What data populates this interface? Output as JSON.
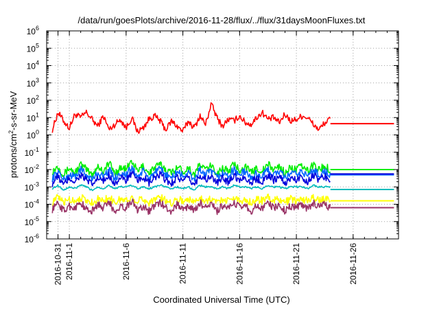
{
  "chart_data": {
    "type": "line",
    "title": "/data/run/goesPlots/archive/2016-11-28/flux/../flux/31daysMoonFluxes.txt",
    "xlabel": "Coordinated Universal Time (UTC)",
    "ylabel_main": "protons/cm",
    "ylabel_sup": "2",
    "ylabel_rest": "-s-sr-MeV",
    "yscale": "log",
    "ylim_exponent": [
      -6,
      6
    ],
    "y_ticks": [
      {
        "base": "10",
        "exp": "-6",
        "value": -6
      },
      {
        "base": "10",
        "exp": "-5",
        "value": -5
      },
      {
        "base": "10",
        "exp": "-4",
        "value": -4
      },
      {
        "base": "10",
        "exp": "-3",
        "value": -3
      },
      {
        "base": "10",
        "exp": "-2",
        "value": -2
      },
      {
        "base": "10",
        "exp": "-1",
        "value": -1
      },
      {
        "base": "10",
        "exp": "0",
        "value": 0
      },
      {
        "base": "10",
        "exp": "1",
        "value": 1
      },
      {
        "base": "10",
        "exp": "2",
        "value": 2
      },
      {
        "base": "10",
        "exp": "3",
        "value": 3
      },
      {
        "base": "10",
        "exp": "4",
        "value": 4
      },
      {
        "base": "10",
        "exp": "5",
        "value": 5
      },
      {
        "base": "10",
        "exp": "6",
        "value": 6
      }
    ],
    "xlim_days": [
      -1,
      30
    ],
    "x_ticks": [
      {
        "label": "2016-10-31",
        "day": 0
      },
      {
        "label": "2016-11-1",
        "day": 1
      },
      {
        "label": "2016-11-6",
        "day": 6
      },
      {
        "label": "2016-11-11",
        "day": 11
      },
      {
        "label": "2016-11-16",
        "day": 16
      },
      {
        "label": "2016-11-21",
        "day": 21
      },
      {
        "label": "2016-11-26",
        "day": 26
      }
    ],
    "grid": true,
    "series": [
      {
        "color": "#ff0000",
        "x": [
          -0.5,
          0.0,
          0.5,
          1.0,
          1.5,
          2.0,
          2.5,
          3.0,
          3.5,
          4.0,
          4.5,
          5.0,
          5.5,
          6.0,
          6.5,
          7.0,
          7.5,
          8.0,
          8.5,
          9.0,
          9.5,
          10.0,
          10.5,
          11.0,
          11.5,
          12.0,
          12.5,
          13.0,
          13.5,
          14.0,
          14.5,
          15.0,
          15.5,
          16.0,
          16.5,
          17.0,
          17.5,
          18.0,
          18.5,
          19.0,
          19.5,
          20.0,
          20.5,
          21.0,
          21.5,
          22.0,
          22.5,
          23.0,
          23.5,
          24.0,
          29.6
        ],
        "values_log10": [
          0.3,
          1.3,
          0.8,
          0.4,
          1.2,
          1.0,
          1.3,
          0.9,
          0.5,
          1.1,
          0.3,
          0.6,
          0.9,
          0.4,
          1.0,
          0.2,
          0.4,
          0.9,
          1.1,
          0.8,
          0.3,
          0.8,
          0.5,
          0.2,
          0.8,
          0.4,
          1.1,
          0.6,
          1.8,
          1.0,
          0.5,
          0.9,
          0.8,
          1.1,
          0.7,
          0.6,
          1.0,
          1.3,
          0.9,
          1.0,
          0.7,
          1.2,
          0.8,
          0.9,
          1.1,
          1.0,
          0.6,
          0.3,
          0.7,
          0.9,
          0.65
        ]
      },
      {
        "color": "#00ee00",
        "x": [
          -0.5,
          0.0,
          0.5,
          1.0,
          1.5,
          2.0,
          2.5,
          3.0,
          3.5,
          4.0,
          4.5,
          5.0,
          5.5,
          6.0,
          6.5,
          7.0,
          7.5,
          8.0,
          8.5,
          9.0,
          9.5,
          10.0,
          10.5,
          11.0,
          11.5,
          12.0,
          12.5,
          13.0,
          13.5,
          14.0,
          14.5,
          15.0,
          15.5,
          16.0,
          16.5,
          17.0,
          17.5,
          18.0,
          18.5,
          19.0,
          19.5,
          20.0,
          20.5,
          21.0,
          21.5,
          22.0,
          22.5,
          23.0,
          23.5,
          24.0,
          29.6
        ],
        "values_log10": [
          -2.1,
          -1.8,
          -2.3,
          -1.9,
          -2.2,
          -1.7,
          -2.0,
          -2.3,
          -1.8,
          -2.1,
          -1.6,
          -2.2,
          -1.9,
          -2.0,
          -1.5,
          -2.1,
          -1.8,
          -2.2,
          -1.9,
          -1.7,
          -2.0,
          -2.2,
          -1.8,
          -2.1,
          -1.9,
          -2.3,
          -1.7,
          -2.0,
          -1.8,
          -2.2,
          -1.9,
          -2.1,
          -1.7,
          -2.0,
          -1.8,
          -2.2,
          -1.9,
          -2.1,
          -1.7,
          -2.0,
          -1.8,
          -2.2,
          -1.9,
          -2.0,
          -1.8,
          -2.1,
          -1.7,
          -2.0,
          -1.8,
          -2.0,
          -2.0
        ]
      },
      {
        "color": "#0066ff",
        "x": [
          -0.5,
          0.0,
          0.5,
          1.0,
          1.5,
          2.0,
          2.5,
          3.0,
          3.5,
          4.0,
          4.5,
          5.0,
          5.5,
          6.0,
          6.5,
          7.0,
          7.5,
          8.0,
          8.5,
          9.0,
          9.5,
          10.0,
          10.5,
          11.0,
          11.5,
          12.0,
          12.5,
          13.0,
          13.5,
          14.0,
          14.5,
          15.0,
          15.5,
          16.0,
          16.5,
          17.0,
          17.5,
          18.0,
          18.5,
          19.0,
          19.5,
          20.0,
          20.5,
          21.0,
          21.5,
          22.0,
          22.5,
          23.0,
          23.5,
          24.0,
          29.6
        ],
        "values_log10": [
          -2.5,
          -2.1,
          -2.6,
          -2.3,
          -2.4,
          -2.0,
          -2.3,
          -2.6,
          -2.2,
          -2.4,
          -2.0,
          -2.5,
          -2.2,
          -2.3,
          -1.9,
          -2.4,
          -2.1,
          -2.5,
          -2.2,
          -2.0,
          -2.3,
          -2.5,
          -2.1,
          -2.4,
          -2.2,
          -2.6,
          -2.0,
          -2.3,
          -2.1,
          -2.5,
          -2.2,
          -2.4,
          -2.0,
          -2.3,
          -2.1,
          -2.5,
          -2.2,
          -2.4,
          -2.0,
          -2.3,
          -2.1,
          -2.5,
          -2.2,
          -2.3,
          -2.1,
          -2.4,
          -2.0,
          -2.3,
          -2.1,
          -2.3,
          -2.3
        ]
      },
      {
        "color": "#0000dd",
        "x": [
          -0.5,
          0.0,
          0.5,
          1.0,
          1.5,
          2.0,
          2.5,
          3.0,
          3.5,
          4.0,
          4.5,
          5.0,
          5.5,
          6.0,
          6.5,
          7.0,
          7.5,
          8.0,
          8.5,
          9.0,
          9.5,
          10.0,
          10.5,
          11.0,
          11.5,
          12.0,
          12.5,
          13.0,
          13.5,
          14.0,
          14.5,
          15.0,
          15.5,
          16.0,
          16.5,
          17.0,
          17.5,
          18.0,
          18.5,
          19.0,
          19.5,
          20.0,
          20.5,
          21.0,
          21.5,
          22.0,
          22.5,
          23.0,
          23.5,
          24.0,
          29.6
        ],
        "values_log10": [
          -2.8,
          -2.4,
          -2.9,
          -2.5,
          -2.7,
          -2.3,
          -2.6,
          -2.9,
          -2.5,
          -2.7,
          -2.3,
          -2.8,
          -2.5,
          -2.6,
          -2.2,
          -2.7,
          -2.4,
          -2.8,
          -2.5,
          -2.3,
          -2.6,
          -2.8,
          -2.4,
          -2.7,
          -2.5,
          -2.9,
          -2.3,
          -2.6,
          -2.4,
          -2.8,
          -2.5,
          -2.7,
          -2.3,
          -2.6,
          -2.4,
          -2.8,
          -2.5,
          -2.7,
          -2.3,
          -2.6,
          -2.4,
          -2.8,
          -2.5,
          -2.6,
          -2.4,
          -2.7,
          -2.3,
          -2.6,
          -2.4,
          -2.6,
          -2.25
        ]
      },
      {
        "color": "#00bbbb",
        "x": [
          -0.5,
          0.0,
          0.5,
          1.0,
          1.5,
          2.0,
          2.5,
          3.0,
          3.5,
          4.0,
          4.5,
          5.0,
          5.5,
          6.0,
          6.5,
          7.0,
          7.5,
          8.0,
          8.5,
          9.0,
          9.5,
          10.0,
          10.5,
          11.0,
          11.5,
          12.0,
          12.5,
          13.0,
          13.5,
          14.0,
          14.5,
          15.0,
          15.5,
          16.0,
          16.5,
          17.0,
          17.5,
          18.0,
          18.5,
          19.0,
          19.5,
          20.0,
          20.5,
          21.0,
          21.5,
          22.0,
          22.5,
          23.0,
          23.5,
          24.0,
          29.6
        ],
        "values_log10": [
          -3.1,
          -2.9,
          -3.2,
          -3.0,
          -3.1,
          -2.9,
          -3.0,
          -3.2,
          -3.0,
          -3.1,
          -2.9,
          -3.1,
          -3.0,
          -3.0,
          -2.9,
          -3.1,
          -3.0,
          -3.1,
          -3.0,
          -2.9,
          -3.0,
          -3.1,
          -3.0,
          -3.1,
          -3.0,
          -3.2,
          -2.9,
          -3.0,
          -3.0,
          -3.1,
          -3.0,
          -3.1,
          -2.9,
          -3.0,
          -3.0,
          -3.1,
          -3.0,
          -3.1,
          -2.9,
          -3.0,
          -3.0,
          -3.1,
          -3.0,
          -3.0,
          -3.0,
          -3.1,
          -2.9,
          -3.0,
          -3.0,
          -3.0,
          -3.15
        ]
      },
      {
        "color": "#ffff00",
        "x": [
          -0.5,
          0.0,
          0.5,
          1.0,
          1.5,
          2.0,
          2.5,
          3.0,
          3.5,
          4.0,
          4.5,
          5.0,
          5.5,
          6.0,
          6.5,
          7.0,
          7.5,
          8.0,
          8.5,
          9.0,
          9.5,
          10.0,
          10.5,
          11.0,
          11.5,
          12.0,
          12.5,
          13.0,
          13.5,
          14.0,
          14.5,
          15.0,
          15.5,
          16.0,
          16.5,
          17.0,
          17.5,
          18.0,
          18.5,
          19.0,
          19.5,
          20.0,
          20.5,
          21.0,
          21.5,
          22.0,
          22.5,
          23.0,
          23.5,
          24.0,
          29.6
        ],
        "values_log10": [
          -3.9,
          -3.6,
          -3.9,
          -3.7,
          -3.8,
          -3.6,
          -3.8,
          -3.9,
          -3.7,
          -3.8,
          -3.6,
          -3.9,
          -3.7,
          -3.8,
          -3.6,
          -3.8,
          -3.7,
          -3.9,
          -3.7,
          -3.6,
          -3.8,
          -3.9,
          -3.7,
          -3.8,
          -3.7,
          -3.9,
          -3.6,
          -3.8,
          -3.7,
          -3.9,
          -3.7,
          -3.8,
          -3.6,
          -3.8,
          -3.7,
          -3.9,
          -3.7,
          -3.8,
          -3.6,
          -3.8,
          -3.7,
          -3.9,
          -3.7,
          -3.8,
          -3.7,
          -3.8,
          -3.6,
          -3.8,
          -3.7,
          -3.8,
          -3.8
        ]
      },
      {
        "color": "#993366",
        "x": [
          -0.5,
          0.0,
          0.5,
          1.0,
          1.5,
          2.0,
          2.5,
          3.0,
          3.5,
          4.0,
          4.5,
          5.0,
          5.5,
          6.0,
          6.5,
          7.0,
          7.5,
          8.0,
          8.5,
          9.0,
          9.5,
          10.0,
          10.5,
          11.0,
          11.5,
          12.0,
          12.5,
          13.0,
          13.5,
          14.0,
          14.5,
          15.0,
          15.5,
          16.0,
          16.5,
          17.0,
          17.5,
          18.0,
          18.5,
          19.0,
          19.5,
          20.0,
          20.5,
          21.0,
          21.5,
          22.0,
          22.5,
          23.0,
          23.5,
          24.0,
          29.6
        ],
        "values_log10": [
          -4.3,
          -3.9,
          -4.4,
          -4.1,
          -4.2,
          -3.9,
          -4.3,
          -4.4,
          -4.0,
          -4.2,
          -3.9,
          -4.4,
          -4.1,
          -4.2,
          -3.8,
          -4.3,
          -4.1,
          -4.4,
          -4.1,
          -3.9,
          -4.2,
          -4.4,
          -4.0,
          -4.3,
          -4.1,
          -4.4,
          -3.9,
          -4.2,
          -4.0,
          -4.4,
          -4.1,
          -4.3,
          -3.9,
          -4.2,
          -4.0,
          -4.4,
          -4.1,
          -4.3,
          -3.9,
          -4.2,
          -4.0,
          -4.4,
          -4.1,
          -4.2,
          -4.0,
          -4.3,
          -3.9,
          -4.2,
          -4.0,
          -4.2,
          -4.2
        ]
      }
    ]
  }
}
